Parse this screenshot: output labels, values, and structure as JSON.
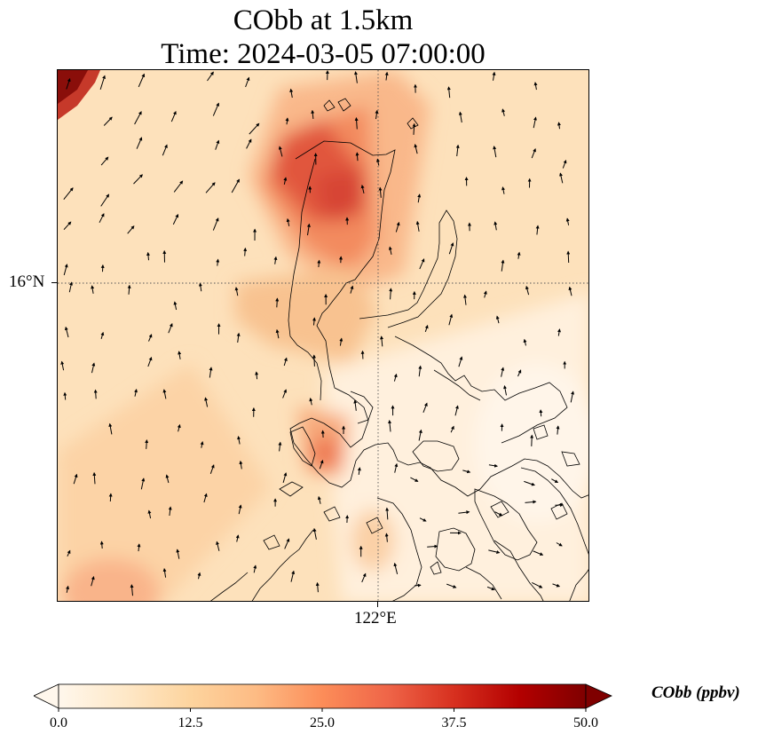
{
  "title": {
    "line1": "CObb at 1.5km",
    "line2": "Time: 2024-03-05 07:00:00"
  },
  "map": {
    "lat_label": "16°N",
    "lon_label": "122°E",
    "gridline_style": "dotted",
    "colormap": "OrRd",
    "vector_field": "wind arrows",
    "features": [
      "coastline",
      "gridlines",
      "wind-vectors",
      "filled-contour"
    ]
  },
  "colorbar": {
    "label": "CObb (ppbv)",
    "ticks": [
      "0.0",
      "12.5",
      "25.0",
      "37.5",
      "50.0"
    ],
    "min": 0,
    "max": 50,
    "extend": "both",
    "colors": [
      "#fff7ec",
      "#fee8c8",
      "#fdd49e",
      "#fdbb84",
      "#fc8d59",
      "#ef6548",
      "#d7301f",
      "#b30000",
      "#7f0000"
    ]
  }
}
